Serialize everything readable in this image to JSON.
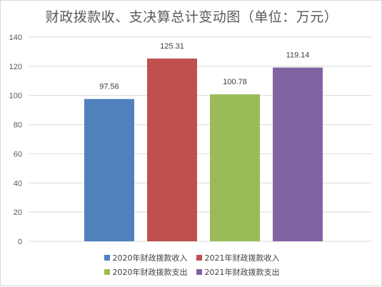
{
  "chart_data": {
    "type": "bar",
    "title": "财政拨款收、支决算总计变动图（单位：万元）",
    "xlabel": "",
    "ylabel": "",
    "ylim": [
      0,
      140
    ],
    "yticks": [
      0,
      20,
      40,
      60,
      80,
      100,
      120,
      140
    ],
    "grid": true,
    "legend_position": "bottom",
    "series": [
      {
        "name": "2020年财政拨款收入",
        "value": 97.56,
        "label": "97.56",
        "color": "#4f81bd"
      },
      {
        "name": "2021年财政拨款收入",
        "value": 125.31,
        "label": "125.31",
        "color": "#c0504d"
      },
      {
        "name": "2020年财政拨款支出",
        "value": 100.78,
        "label": "100.78",
        "color": "#9bbb59"
      },
      {
        "name": "2021年财政拨款支出",
        "value": 119.14,
        "label": "119.14",
        "color": "#8064a2"
      }
    ]
  }
}
